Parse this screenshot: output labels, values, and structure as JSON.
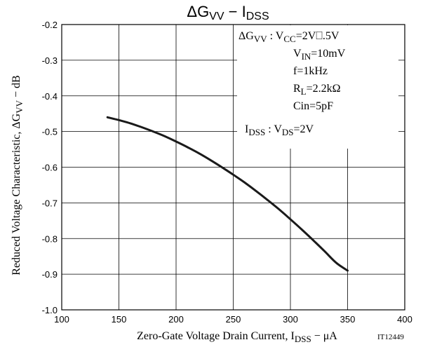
{
  "chart_data": {
    "type": "line",
    "title": "ΔGVV − IDSS",
    "xlabel": "Zero-Gate Voltage Drain Current, IDSS − μA",
    "ylabel": "Reduced Voltage Characteristic, ΔGVV − dB",
    "figure_code": "IT12449",
    "xlim": [
      100,
      400
    ],
    "ylim": [
      -1.0,
      -0.2
    ],
    "x_ticks": [
      "100",
      "150",
      "200",
      "250",
      "300",
      "350",
      "400"
    ],
    "y_ticks": [
      "-0.2",
      "-0.3",
      "-0.4",
      "-0.5",
      "-0.6",
      "-0.7",
      "-0.8",
      "-0.9",
      "-1.0"
    ],
    "grid": true,
    "series": [
      {
        "x": [
          140,
          150,
          160,
          170,
          180,
          190,
          200,
          210,
          220,
          230,
          240,
          250,
          260,
          270,
          280,
          290,
          300,
          310,
          320,
          330,
          340,
          350
        ],
        "y": [
          -0.46,
          -0.468,
          -0.477,
          -0.488,
          -0.5,
          -0.513,
          -0.528,
          -0.544,
          -0.561,
          -0.58,
          -0.6,
          -0.621,
          -0.643,
          -0.667,
          -0.692,
          -0.718,
          -0.746,
          -0.775,
          -0.805,
          -0.836,
          -0.868,
          -0.89
        ]
      }
    ],
    "annotations": [
      {
        "text": "ΔGVV : VCC=2V⎕.5V"
      },
      {
        "text": "VIN=10mV"
      },
      {
        "text": "f=1kHz"
      },
      {
        "text": "RL=2.2kΩ"
      },
      {
        "text": "Cin=5pF"
      },
      {
        "text": "IDSS : VDS=2V"
      }
    ],
    "colors": {
      "curve": "#1a1a1a",
      "grid": "#000000"
    }
  }
}
